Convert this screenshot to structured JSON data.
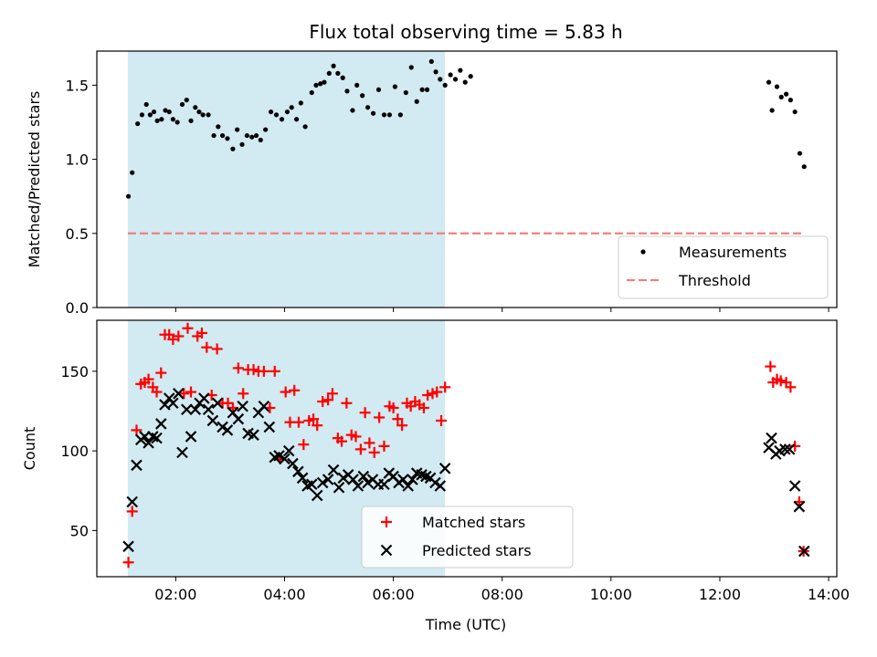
{
  "figure": {
    "title": "Flux total observing time = 5.83 h",
    "xlabel": "Time (UTC)"
  },
  "chart_data": [
    {
      "type": "scatter",
      "panel": "top",
      "ylabel": "Matched/Predicted stars",
      "xlim": [
        0.55,
        14.15
      ],
      "ylim": [
        0.0,
        1.73
      ],
      "x_ticks": [
        2,
        4,
        6,
        8,
        10,
        12,
        14
      ],
      "x_tick_labels": [
        "02:00",
        "04:00",
        "06:00",
        "08:00",
        "10:00",
        "12:00",
        "14:00"
      ],
      "y_ticks": [
        0.0,
        0.5,
        1.0,
        1.5
      ],
      "y_tick_labels": [
        "0.0",
        "0.5",
        "1.0",
        "1.5"
      ],
      "shaded_span": [
        1.12,
        6.95
      ],
      "shaded_color": "#add8e6",
      "legend_position": "lower-right",
      "series": [
        {
          "name": "Measurements",
          "marker": "dot",
          "color": "#000000",
          "points": [
            [
              1.13,
              0.75
            ],
            [
              1.2,
              0.91
            ],
            [
              1.3,
              1.24
            ],
            [
              1.38,
              1.3
            ],
            [
              1.46,
              1.37
            ],
            [
              1.53,
              1.3
            ],
            [
              1.6,
              1.32
            ],
            [
              1.66,
              1.26
            ],
            [
              1.74,
              1.27
            ],
            [
              1.81,
              1.33
            ],
            [
              1.88,
              1.32
            ],
            [
              1.95,
              1.27
            ],
            [
              2.03,
              1.25
            ],
            [
              2.12,
              1.37
            ],
            [
              2.2,
              1.4
            ],
            [
              2.28,
              1.26
            ],
            [
              2.36,
              1.35
            ],
            [
              2.43,
              1.32
            ],
            [
              2.5,
              1.3
            ],
            [
              2.6,
              1.3
            ],
            [
              2.7,
              1.16
            ],
            [
              2.78,
              1.22
            ],
            [
              2.86,
              1.16
            ],
            [
              2.95,
              1.14
            ],
            [
              3.05,
              1.07
            ],
            [
              3.13,
              1.2
            ],
            [
              3.22,
              1.1
            ],
            [
              3.31,
              1.16
            ],
            [
              3.4,
              1.15
            ],
            [
              3.48,
              1.16
            ],
            [
              3.56,
              1.13
            ],
            [
              3.65,
              1.2
            ],
            [
              3.75,
              1.32
            ],
            [
              3.85,
              1.3
            ],
            [
              3.95,
              1.27
            ],
            [
              4.05,
              1.32
            ],
            [
              4.13,
              1.35
            ],
            [
              4.22,
              1.27
            ],
            [
              4.3,
              1.38
            ],
            [
              4.38,
              1.22
            ],
            [
              4.5,
              1.45
            ],
            [
              4.58,
              1.5
            ],
            [
              4.66,
              1.51
            ],
            [
              4.73,
              1.52
            ],
            [
              4.82,
              1.58
            ],
            [
              4.9,
              1.63
            ],
            [
              4.98,
              1.58
            ],
            [
              5.07,
              1.55
            ],
            [
              5.15,
              1.46
            ],
            [
              5.25,
              1.33
            ],
            [
              5.33,
              1.5
            ],
            [
              5.43,
              1.43
            ],
            [
              5.53,
              1.35
            ],
            [
              5.63,
              1.31
            ],
            [
              5.73,
              1.47
            ],
            [
              5.83,
              1.3
            ],
            [
              5.93,
              1.3
            ],
            [
              6.03,
              1.49
            ],
            [
              6.13,
              1.3
            ],
            [
              6.23,
              1.45
            ],
            [
              6.33,
              1.62
            ],
            [
              6.43,
              1.39
            ],
            [
              6.53,
              1.47
            ],
            [
              6.62,
              1.47
            ],
            [
              6.7,
              1.66
            ],
            [
              6.78,
              1.59
            ],
            [
              6.86,
              1.54
            ],
            [
              6.95,
              1.5
            ],
            [
              7.05,
              1.57
            ],
            [
              7.14,
              1.54
            ],
            [
              7.23,
              1.6
            ],
            [
              7.32,
              1.52
            ],
            [
              7.42,
              1.56
            ],
            [
              12.9,
              1.52
            ],
            [
              12.96,
              1.33
            ],
            [
              13.05,
              1.49
            ],
            [
              13.13,
              1.42
            ],
            [
              13.22,
              1.44
            ],
            [
              13.3,
              1.4
            ],
            [
              13.38,
              1.32
            ],
            [
              13.47,
              1.04
            ],
            [
              13.55,
              0.95
            ]
          ]
        },
        {
          "name": "Threshold",
          "line_style": "dashed",
          "color": "#f08080",
          "points": [
            [
              1.12,
              0.5
            ],
            [
              13.55,
              0.5
            ]
          ]
        }
      ]
    },
    {
      "type": "scatter",
      "panel": "bottom",
      "ylabel": "Count",
      "xlabel": "Time (UTC)",
      "xlim": [
        0.55,
        14.15
      ],
      "ylim": [
        21,
        182
      ],
      "x_ticks": [
        2,
        4,
        6,
        8,
        10,
        12,
        14
      ],
      "x_tick_labels": [
        "02:00",
        "04:00",
        "06:00",
        "08:00",
        "10:00",
        "12:00",
        "14:00"
      ],
      "y_ticks": [
        50,
        100,
        150
      ],
      "y_tick_labels": [
        "50",
        "100",
        "150"
      ],
      "shaded_span": [
        1.12,
        6.95
      ],
      "shaded_color": "#add8e6",
      "legend_position": "lower-center",
      "series": [
        {
          "name": "Matched stars",
          "marker": "plus",
          "color": "#ff0000",
          "points": [
            [
              1.13,
              30
            ],
            [
              1.2,
              62
            ],
            [
              1.28,
              113
            ],
            [
              1.36,
              142
            ],
            [
              1.43,
              143
            ],
            [
              1.5,
              145
            ],
            [
              1.58,
              140
            ],
            [
              1.65,
              137
            ],
            [
              1.73,
              149
            ],
            [
              1.8,
              173
            ],
            [
              1.88,
              173
            ],
            [
              1.95,
              170
            ],
            [
              2.05,
              172
            ],
            [
              2.15,
              136
            ],
            [
              2.22,
              177
            ],
            [
              2.28,
              137
            ],
            [
              2.4,
              172
            ],
            [
              2.48,
              174
            ],
            [
              2.57,
              165
            ],
            [
              2.66,
              135
            ],
            [
              2.76,
              164
            ],
            [
              2.86,
              130
            ],
            [
              2.96,
              130
            ],
            [
              3.05,
              127
            ],
            [
              3.15,
              152
            ],
            [
              3.24,
              136
            ],
            [
              3.33,
              151
            ],
            [
              3.43,
              151
            ],
            [
              3.52,
              150
            ],
            [
              3.62,
              150
            ],
            [
              3.73,
              127
            ],
            [
              3.82,
              150
            ],
            [
              3.92,
              95
            ],
            [
              4.02,
              137
            ],
            [
              4.1,
              118
            ],
            [
              4.18,
              138
            ],
            [
              4.26,
              118
            ],
            [
              4.35,
              104
            ],
            [
              4.45,
              119
            ],
            [
              4.53,
              120
            ],
            [
              4.6,
              116
            ],
            [
              4.7,
              131
            ],
            [
              4.8,
              132
            ],
            [
              4.88,
              136
            ],
            [
              4.98,
              108
            ],
            [
              5.05,
              106
            ],
            [
              5.14,
              130
            ],
            [
              5.23,
              110
            ],
            [
              5.31,
              109
            ],
            [
              5.4,
              101
            ],
            [
              5.48,
              124
            ],
            [
              5.56,
              105
            ],
            [
              5.65,
              99
            ],
            [
              5.74,
              121
            ],
            [
              5.83,
              103
            ],
            [
              5.93,
              128
            ],
            [
              6.0,
              127
            ],
            [
              6.08,
              120
            ],
            [
              6.16,
              116
            ],
            [
              6.25,
              130
            ],
            [
              6.32,
              128
            ],
            [
              6.4,
              131
            ],
            [
              6.48,
              129
            ],
            [
              6.56,
              127
            ],
            [
              6.63,
              135
            ],
            [
              6.72,
              136
            ],
            [
              6.8,
              137
            ],
            [
              6.88,
              119
            ],
            [
              6.95,
              140
            ],
            [
              12.93,
              153
            ],
            [
              12.98,
              143
            ],
            [
              13.05,
              145
            ],
            [
              13.12,
              144
            ],
            [
              13.22,
              143
            ],
            [
              13.3,
              140
            ],
            [
              13.38,
              103
            ],
            [
              13.46,
              68
            ],
            [
              13.54,
              37
            ]
          ]
        },
        {
          "name": "Predicted stars",
          "marker": "x",
          "color": "#000000",
          "points": [
            [
              1.13,
              40
            ],
            [
              1.2,
              68
            ],
            [
              1.28,
              91
            ],
            [
              1.36,
              107
            ],
            [
              1.43,
              109
            ],
            [
              1.5,
              105
            ],
            [
              1.58,
              109
            ],
            [
              1.65,
              108
            ],
            [
              1.73,
              117
            ],
            [
              1.8,
              129
            ],
            [
              1.88,
              133
            ],
            [
              1.95,
              130
            ],
            [
              2.05,
              136
            ],
            [
              2.12,
              99
            ],
            [
              2.2,
              126
            ],
            [
              2.28,
              109
            ],
            [
              2.36,
              126
            ],
            [
              2.44,
              130
            ],
            [
              2.52,
              133
            ],
            [
              2.6,
              126
            ],
            [
              2.68,
              119
            ],
            [
              2.77,
              130
            ],
            [
              2.86,
              115
            ],
            [
              2.95,
              113
            ],
            [
              3.05,
              124
            ],
            [
              3.15,
              120
            ],
            [
              3.23,
              128
            ],
            [
              3.33,
              111
            ],
            [
              3.43,
              110
            ],
            [
              3.52,
              124
            ],
            [
              3.62,
              128
            ],
            [
              3.72,
              115
            ],
            [
              3.82,
              96
            ],
            [
              3.9,
              97
            ],
            [
              4.0,
              95
            ],
            [
              4.08,
              100
            ],
            [
              4.15,
              92
            ],
            [
              4.25,
              87
            ],
            [
              4.33,
              83
            ],
            [
              4.42,
              78
            ],
            [
              4.5,
              79
            ],
            [
              4.6,
              72
            ],
            [
              4.7,
              80
            ],
            [
              4.8,
              82
            ],
            [
              4.9,
              88
            ],
            [
              5.0,
              77
            ],
            [
              5.08,
              83
            ],
            [
              5.17,
              85
            ],
            [
              5.26,
              82
            ],
            [
              5.35,
              78
            ],
            [
              5.45,
              84
            ],
            [
              5.53,
              80
            ],
            [
              5.62,
              82
            ],
            [
              5.72,
              79
            ],
            [
              5.83,
              79
            ],
            [
              5.92,
              86
            ],
            [
              6.0,
              84
            ],
            [
              6.1,
              80
            ],
            [
              6.18,
              82
            ],
            [
              6.27,
              78
            ],
            [
              6.35,
              82
            ],
            [
              6.43,
              86
            ],
            [
              6.52,
              85
            ],
            [
              6.6,
              84
            ],
            [
              6.68,
              83
            ],
            [
              6.77,
              80
            ],
            [
              6.86,
              78
            ],
            [
              6.95,
              89
            ],
            [
              12.9,
              102
            ],
            [
              12.95,
              108
            ],
            [
              13.03,
              98
            ],
            [
              13.1,
              100
            ],
            [
              13.2,
              101
            ],
            [
              13.28,
              101
            ],
            [
              13.38,
              78
            ],
            [
              13.46,
              65
            ],
            [
              13.55,
              37
            ]
          ]
        }
      ]
    }
  ]
}
